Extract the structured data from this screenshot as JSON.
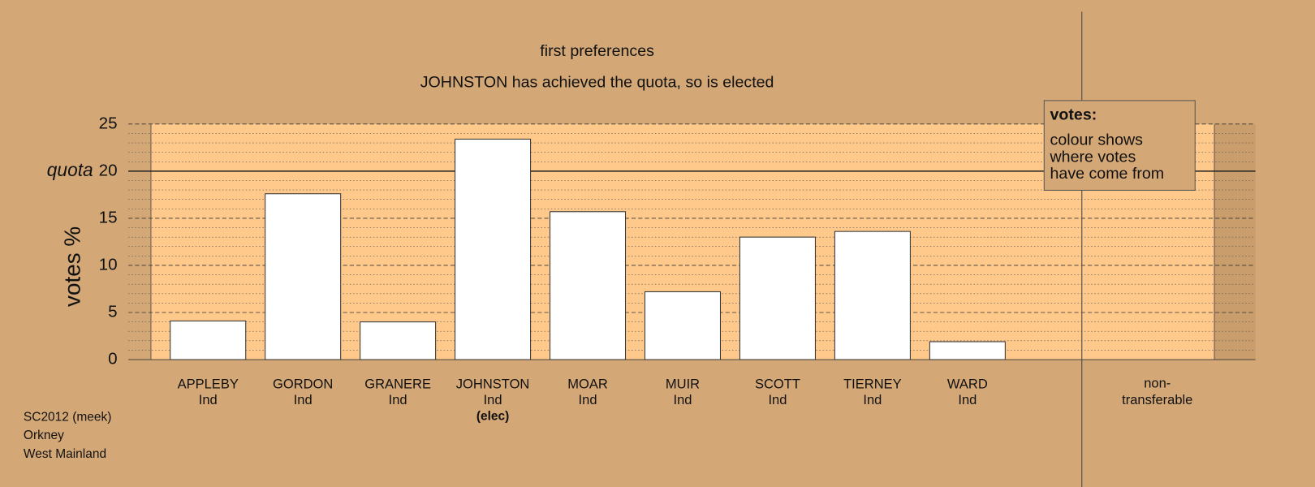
{
  "chart_data": {
    "type": "bar",
    "title": "first preferences",
    "subtitle": "JOHNSTON has achieved the quota, so is elected",
    "ylabel": "votes %",
    "categories": [
      "APPLEBY",
      "GORDON",
      "GRANERE",
      "JOHNSTON",
      "MOAR",
      "MUIR",
      "SCOTT",
      "TIERNEY",
      "WARD"
    ],
    "parties": [
      "Ind",
      "Ind",
      "Ind",
      "Ind",
      "Ind",
      "Ind",
      "Ind",
      "Ind",
      "Ind"
    ],
    "status": [
      null,
      null,
      null,
      "(elec)",
      null,
      null,
      null,
      null,
      null
    ],
    "values": [
      4.1,
      17.6,
      4.0,
      23.4,
      15.7,
      7.2,
      13.0,
      13.6,
      1.9
    ],
    "color": "#ffffff",
    "ylim": [
      0,
      25
    ],
    "yticks": [
      0,
      5,
      10,
      15,
      20,
      25
    ],
    "grid": true,
    "quota": 20,
    "quota_label": "quota",
    "non_transferable_label": [
      "non-",
      "transferable"
    ],
    "legend_title": "votes:",
    "legend_text": [
      "colour shows",
      "where votes",
      "have come from"
    ],
    "footer": [
      "SC2012 (meek)",
      "Orkney",
      "West Mainland"
    ]
  }
}
